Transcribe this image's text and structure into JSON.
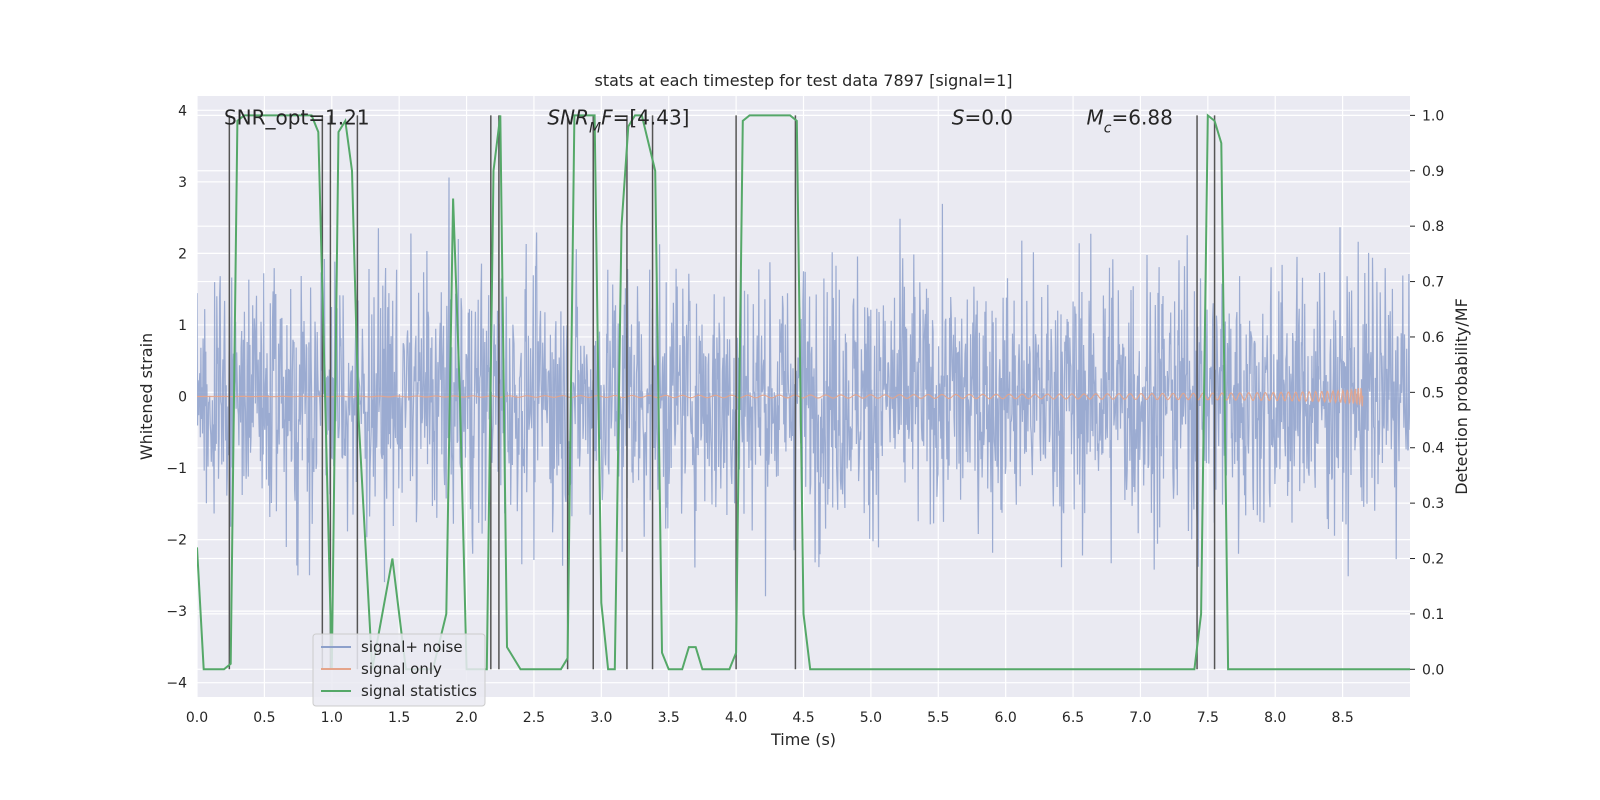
{
  "chart_data": {
    "type": "line",
    "title": "stats at each timestep for test data 7897 [signal=1]",
    "xlabel": "Time (s)",
    "ylabel": "Whitened strain",
    "y2label": "Detection probability/MF",
    "xlim": [
      0,
      9.0
    ],
    "ylim": [
      -4.2,
      4.2
    ],
    "y2lim": [
      -0.05,
      1.035
    ],
    "xticks": [
      0.0,
      0.5,
      1.0,
      1.5,
      2.0,
      2.5,
      3.0,
      3.5,
      4.0,
      4.5,
      5.0,
      5.5,
      6.0,
      6.5,
      7.0,
      7.5,
      8.0,
      8.5
    ],
    "xtick_labels": [
      "0.0",
      "0.5",
      "1.0",
      "1.5",
      "2.0",
      "2.5",
      "3.0",
      "3.5",
      "4.0",
      "4.5",
      "5.0",
      "5.5",
      "6.0",
      "6.5",
      "7.0",
      "7.5",
      "8.0",
      "8.5"
    ],
    "yticks": [
      4,
      3,
      2,
      1,
      0,
      -1,
      -2,
      -3,
      -4
    ],
    "ytick_labels": [
      "4",
      "3",
      "2",
      "1",
      "0",
      "−1",
      "−2",
      "−3",
      "−4"
    ],
    "y2ticks": [
      1.0,
      0.9,
      0.8,
      0.7,
      0.6,
      0.5,
      0.4,
      0.3,
      0.2,
      0.1,
      0.0
    ],
    "y2tick_labels": [
      "1.0",
      "0.9",
      "0.8",
      "0.7",
      "0.6",
      "0.5",
      "0.4",
      "0.3",
      "0.2",
      "0.1",
      "0.0"
    ],
    "grid": true,
    "legend_position": "bottom-left",
    "annotations": [
      {
        "id": "snr-opt",
        "text": "SNR_opt=1.21"
      },
      {
        "id": "snr-mf",
        "text": "SNR_MF=[4.43]"
      },
      {
        "id": "s-val",
        "text": "S=0.0"
      },
      {
        "id": "mc-val",
        "text": "M_c=6.88"
      }
    ],
    "series": [
      {
        "name": "signal+ noise",
        "color": "#8da0cb",
        "axis": "left",
        "approx_amplitude": 2.3,
        "approx_peak": 3.6
      },
      {
        "name": "signal only",
        "color": "#e5a48a",
        "axis": "left",
        "approx_amplitude_end": 0.15
      },
      {
        "name": "signal statistics",
        "color": "#55a868",
        "axis": "right",
        "x": [
          0.0,
          0.05,
          0.2,
          0.25,
          0.3,
          0.35,
          0.85,
          0.9,
          0.95,
          1.0,
          1.05,
          1.1,
          1.15,
          1.2,
          1.3,
          1.45,
          1.55,
          1.75,
          1.85,
          1.9,
          1.95,
          2.0,
          2.05,
          2.15,
          2.2,
          2.25,
          2.3,
          2.4,
          2.5,
          2.6,
          2.7,
          2.75,
          2.8,
          2.9,
          2.95,
          3.0,
          3.05,
          3.1,
          3.15,
          3.2,
          3.25,
          3.3,
          3.4,
          3.45,
          3.5,
          3.6,
          3.65,
          3.7,
          3.75,
          3.8,
          3.85,
          3.95,
          4.0,
          4.05,
          4.1,
          4.4,
          4.45,
          4.5,
          4.55,
          4.6,
          7.3,
          7.4,
          7.45,
          7.5,
          7.55,
          7.6,
          7.65,
          9.0
        ],
        "y": [
          0.22,
          0.0,
          0.0,
          0.01,
          0.99,
          1.0,
          1.0,
          0.97,
          0.5,
          0.0,
          0.97,
          0.99,
          0.9,
          0.45,
          0.0,
          0.2,
          0.0,
          0.0,
          0.1,
          0.85,
          0.5,
          0.0,
          0.0,
          0.0,
          0.9,
          1.0,
          0.04,
          0.0,
          0.0,
          0.0,
          0.0,
          0.02,
          1.0,
          1.0,
          1.0,
          0.12,
          0.0,
          0.0,
          0.8,
          0.98,
          1.0,
          1.0,
          0.9,
          0.03,
          0.0,
          0.0,
          0.04,
          0.04,
          0.0,
          0.0,
          0.0,
          0.0,
          0.03,
          0.99,
          1.0,
          1.0,
          0.99,
          0.1,
          0.0,
          0.0,
          0.0,
          0.0,
          0.1,
          1.0,
          0.99,
          0.95,
          0.0,
          0.0
        ]
      }
    ],
    "vertical_markers": [
      0.24,
      0.93,
      0.99,
      1.19,
      2.18,
      2.24,
      2.75,
      2.94,
      3.19,
      3.38,
      4.0,
      4.44,
      7.42,
      7.55
    ]
  }
}
